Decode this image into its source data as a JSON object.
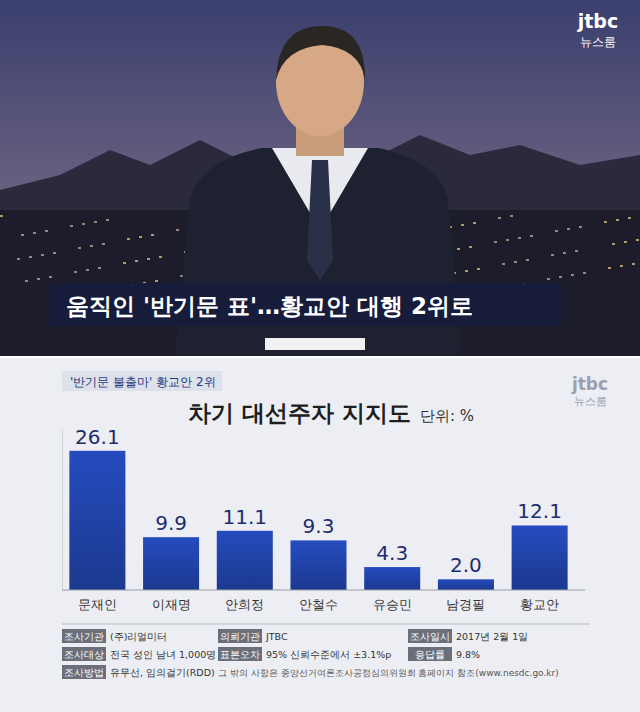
{
  "broadcast": {
    "logo": "jtbc",
    "logo_sub": "뉴스룸",
    "caption": "움직인 '반기문 표'…황교안 대행 2위로"
  },
  "chart_data": {
    "type": "bar",
    "annotations": [
      "'반기문 불출마' 황교안 2위"
    ],
    "title": "차기 대선주자 지지도",
    "subtitle": "단위: %",
    "logo": "jtbc",
    "logo_sub": "뉴스룸",
    "categories": [
      "문재인",
      "이재명",
      "안희정",
      "안철수",
      "유승민",
      "남경필",
      "황교안"
    ],
    "values": [
      26.1,
      9.9,
      11.1,
      9.3,
      4.3,
      2.0,
      12.1
    ],
    "value_labels": [
      "26.1",
      "9.9",
      "11.1",
      "9.3",
      "4.3",
      "2.0",
      "12.1"
    ],
    "color": "#1f3f9f",
    "ylim": [
      0,
      30
    ],
    "yticks": [
      0
    ],
    "data_labels": true,
    "tick_labels": false,
    "grid": false
  },
  "survey": {
    "items": [
      {
        "label": "조사기관",
        "value": "(주)리얼미터"
      },
      {
        "label": "의뢰기관",
        "value": "JTBC"
      },
      {
        "label": "조사일시",
        "value": "2017년 2월 1일"
      },
      {
        "label": "조사대상",
        "value": "전국 성인 남녀 1,000명"
      },
      {
        "label": "표본오차",
        "value": "95% 신뢰수준에서 ±3.1%p"
      },
      {
        "label": "응답률",
        "value": "9.8%"
      },
      {
        "label": "조사방법",
        "value": "유무선, 임의걸기(RDD)"
      }
    ],
    "note": "그 밖의 사항은 중앙선거여론조사공정심의위원회 홈페이지 참조(www.nesdc.go.kr)"
  }
}
